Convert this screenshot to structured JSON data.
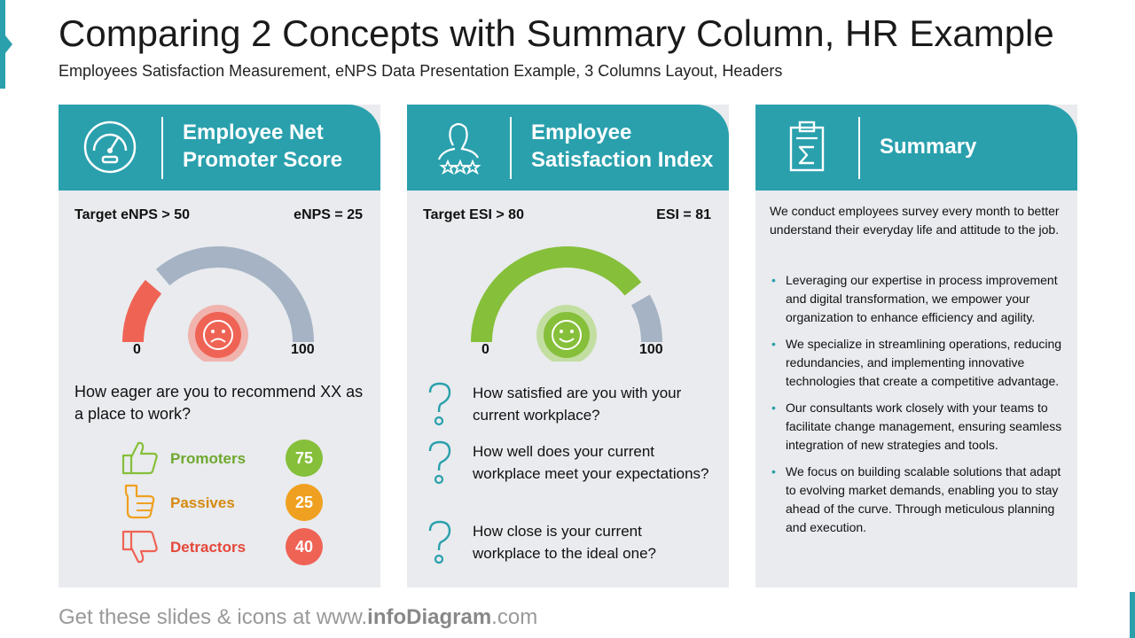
{
  "header": {
    "title": "Comparing 2 Concepts with Summary Column, HR Example",
    "subtitle": "Employees Satisfaction Measurement, eNPS Data Presentation Example, 3 Columns Layout, Headers"
  },
  "colors": {
    "teal": "#2aa0ad",
    "red": "#ef6355",
    "green": "#86bf3a",
    "gray_arc": "#a5b3c4",
    "orange": "#f0a020",
    "card_bg": "#e9ebee"
  },
  "enps": {
    "title_line1": "Employee Net",
    "title_line2": "Promoter Score",
    "icon": "speedometer-icon",
    "target": "Target eNPS > 50",
    "value_label": "eNPS = 25",
    "gauge_value": 25,
    "scale_min": "0",
    "scale_max": "100",
    "face": "sad-face-icon",
    "question": "How eager are you to recommend XX as a place to work?",
    "groups": [
      {
        "label": "Promoters",
        "value": "75",
        "icon": "thumbs-up-icon",
        "color": "#6fa82f"
      },
      {
        "label": "Passives",
        "value": "25",
        "icon": "hand-pointing-icon",
        "color": "#d68a10"
      },
      {
        "label": "Detractors",
        "value": "40",
        "icon": "thumbs-down-icon",
        "color": "#e5473a"
      }
    ]
  },
  "esi": {
    "title_line1": "Employee",
    "title_line2": "Satisfaction Index",
    "icon": "person-rating-icon",
    "target": "Target ESI > 80",
    "value_label": "ESI = 81",
    "gauge_value": 81,
    "scale_min": "0",
    "scale_max": "100",
    "face": "happy-face-icon",
    "questions": [
      "How satisfied are you with your current workplace?",
      "How well does your current workplace meet your expectations?",
      "How close is your current workplace to the ideal one?"
    ]
  },
  "summary": {
    "title": "Summary",
    "icon": "clipboard-sigma-icon",
    "intro": "We conduct employees survey every month to better understand their everyday life and attitude to the job.",
    "bullets": [
      "Leveraging our expertise in process improvement and digital transformation, we empower your organization to enhance efficiency and agility.",
      "We specialize in streamlining operations, reducing redundancies, and implementing innovative technologies that create a competitive advantage.",
      "Our consultants work closely with your teams to facilitate change management, ensuring seamless integration of new strategies and tools.",
      "We focus on building scalable solutions that adapt to evolving market demands, enabling you to stay ahead of the curve. Through meticulous planning and execution."
    ]
  },
  "footer": {
    "prefix": "Get these slides & icons at www.",
    "brand": "infoDiagram",
    "suffix": ".com"
  }
}
